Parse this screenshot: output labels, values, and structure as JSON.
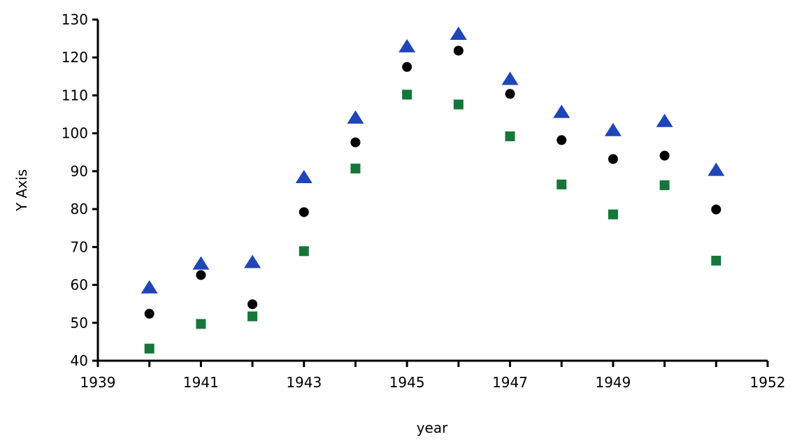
{
  "chart_data": {
    "type": "scatter",
    "title": "",
    "xlabel": "year",
    "ylabel": "Y Axis",
    "xlim": [
      1939,
      1952
    ],
    "ylim": [
      40,
      130
    ],
    "x_ticks": [
      1939,
      1940,
      1941,
      1942,
      1943,
      1944,
      1945,
      1946,
      1947,
      1948,
      1949,
      1950,
      1951,
      1952
    ],
    "x_tick_labels": [
      "1939",
      "",
      "1941",
      "",
      "1943",
      "",
      "1945",
      "",
      "1947",
      "",
      "1949",
      "",
      "",
      "1952"
    ],
    "y_ticks": [
      40,
      50,
      60,
      70,
      80,
      90,
      100,
      110,
      120,
      130
    ],
    "y_tick_labels": [
      "40",
      "50",
      "60",
      "70",
      "80",
      "90",
      "100",
      "110",
      "120",
      "130"
    ],
    "grid": false,
    "legend": "none",
    "x": [
      1940,
      1941,
      1942,
      1943,
      1944,
      1945,
      1946,
      1947,
      1948,
      1949,
      1950,
      1951
    ],
    "series": [
      {
        "marker": "triangle",
        "color": "#1f45b8",
        "values": [
          59.5,
          65.8,
          66.2,
          88.6,
          104.3,
          123.1,
          126.4,
          114.5,
          105.8,
          101.0,
          103.4,
          90.5
        ]
      },
      {
        "marker": "circle",
        "color": "#000000",
        "values": [
          52.4,
          62.6,
          54.9,
          79.2,
          97.6,
          117.5,
          121.8,
          110.4,
          98.2,
          93.2,
          94.1,
          79.9
        ]
      },
      {
        "marker": "square",
        "color": "#16763a",
        "values": [
          43.2,
          49.7,
          51.7,
          68.9,
          90.7,
          110.2,
          107.6,
          99.2,
          86.5,
          78.6,
          86.3,
          66.4
        ]
      }
    ]
  }
}
